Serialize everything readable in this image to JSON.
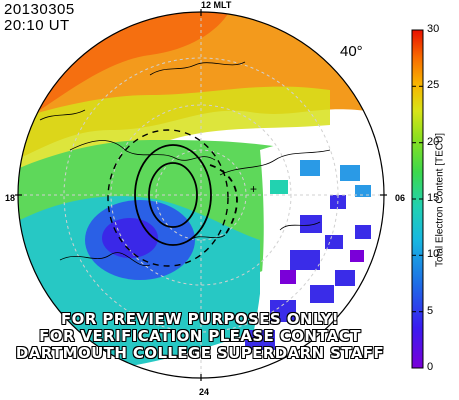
{
  "header": {
    "date": "20130305",
    "time": "20:10 UT"
  },
  "mlt_labels": {
    "top": "12 MLT",
    "left": "18",
    "right": "06",
    "bottom": "24"
  },
  "latitude_label": "40°",
  "watermark": {
    "line1": "FOR PREVIEW PURPOSES ONLY!",
    "line2": "FOR VERIFICATION PLEASE CONTACT",
    "line3": "DARTMOUTH COLLEGE SUPERDARN STAFF"
  },
  "colorbar": {
    "title": "Total Electron Content [TECU]",
    "min": 0,
    "max": 30,
    "ticks": [
      "0",
      "5",
      "10",
      "15",
      "20",
      "25",
      "30"
    ]
  },
  "map_colors": {
    "ocean_bg": "#ffffff",
    "coastline": "#000000",
    "contour": "#000000",
    "grid": "#c8c8c8"
  }
}
